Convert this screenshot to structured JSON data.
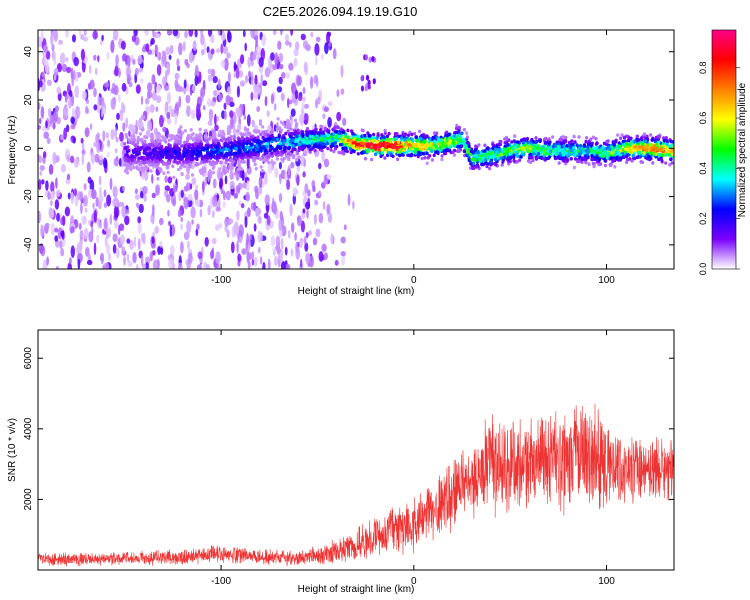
{
  "title": "C2E5.2026.094.19.19.G10",
  "chart_data": [
    {
      "type": "heatmap",
      "xlabel": "Height of straight line (km)",
      "ylabel": "Frequency (Hz)",
      "xlim": [
        -195,
        135
      ],
      "ylim": [
        -50,
        49
      ],
      "xticks": [
        -100,
        0,
        100
      ],
      "yticks": [
        -40,
        -20,
        0,
        20,
        40
      ],
      "colorbar": {
        "label": "Normalized spectral amplitude",
        "range": [
          0,
          0.95
        ],
        "ticks": [
          0.0,
          0.2,
          0.4,
          0.6,
          0.8
        ],
        "colormap": [
          "#ffffff",
          "#7a00ff",
          "#0000ff",
          "#00ffff",
          "#00ff00",
          "#ffff00",
          "#ff8000",
          "#ff0000",
          "#ff0088"
        ]
      },
      "ridge": {
        "x": [
          -195,
          -150,
          -120,
          -100,
          -80,
          -60,
          -40,
          -30,
          -20,
          -10,
          0,
          10,
          20,
          25,
          30,
          40,
          50,
          60,
          70,
          80,
          90,
          100,
          110,
          120,
          135
        ],
        "y": [
          -2,
          -2,
          -2,
          -1,
          1,
          3,
          4,
          2,
          1,
          1,
          1,
          1,
          3,
          4,
          -4,
          -3,
          -1,
          0,
          -1,
          -1,
          -1,
          -2,
          0,
          0,
          -1
        ],
        "amplitude": [
          0.1,
          0.12,
          0.18,
          0.25,
          0.3,
          0.35,
          0.45,
          0.85,
          0.9,
          0.88,
          0.7,
          0.6,
          0.55,
          0.5,
          0.45,
          0.45,
          0.5,
          0.55,
          0.45,
          0.4,
          0.4,
          0.45,
          0.6,
          0.75,
          0.7
        ]
      },
      "grid": false
    },
    {
      "type": "line",
      "xlabel": "Height of straight line (km)",
      "ylabel": "SNR (10 * v/v)",
      "xlim": [
        -195,
        135
      ],
      "ylim": [
        0,
        6800
      ],
      "xticks": [
        -100,
        0,
        100
      ],
      "yticks": [
        2000,
        4000,
        6000
      ],
      "series": [
        {
          "color": "#ee3333",
          "x": [
            -195,
            -180,
            -160,
            -140,
            -120,
            -100,
            -80,
            -60,
            -50,
            -40,
            -30,
            -20,
            -10,
            0,
            10,
            20,
            30,
            40,
            50,
            60,
            70,
            80,
            90,
            100,
            110,
            120,
            135
          ],
          "y": [
            300,
            300,
            320,
            340,
            380,
            450,
            380,
            330,
            400,
            500,
            700,
            900,
            1100,
            1300,
            1700,
            2100,
            2500,
            3000,
            2900,
            3000,
            3000,
            3100,
            3400,
            3000,
            2800,
            2900,
            2800
          ],
          "noise": [
            200,
            200,
            200,
            210,
            230,
            260,
            240,
            220,
            300,
            380,
            500,
            600,
            700,
            800,
            900,
            1000,
            1100,
            1700,
            1400,
            1400,
            1500,
            1500,
            1700,
            1300,
            900,
            900,
            1000
          ]
        }
      ],
      "grid": false
    }
  ]
}
